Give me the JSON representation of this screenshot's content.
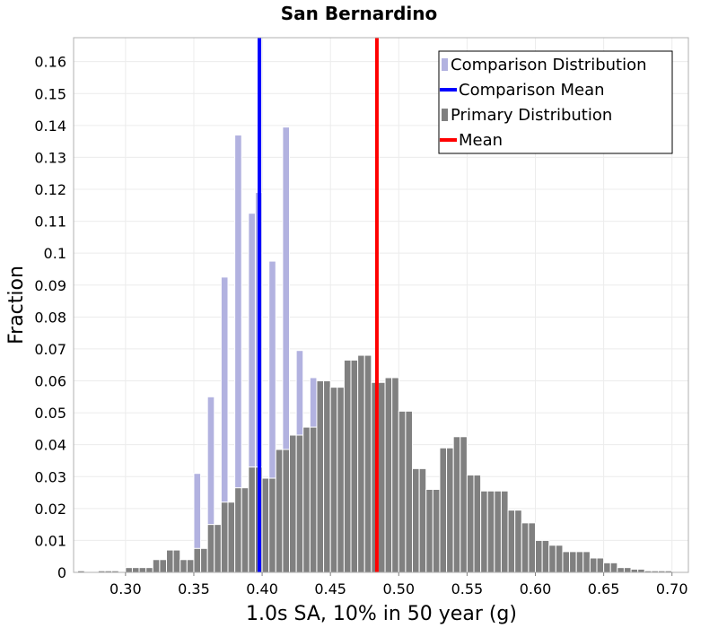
{
  "chart_data": {
    "type": "bar",
    "title": "San Bernardino",
    "xlabel": "1.0s SA, 10% in 50 year (g)",
    "ylabel": "Fraction",
    "xlim": [
      0.262,
      0.712
    ],
    "ylim": [
      0,
      0.1675
    ],
    "x_ticks": [
      "0.30",
      "0.35",
      "0.40",
      "0.45",
      "0.50",
      "0.55",
      "0.60",
      "0.65",
      "0.70"
    ],
    "y_ticks": [
      "0",
      "0.01",
      "0.02",
      "0.03",
      "0.04",
      "0.05",
      "0.06",
      "0.07",
      "0.08",
      "0.09",
      "0.1",
      "0.11",
      "0.12",
      "0.13",
      "0.14",
      "0.15",
      "0.16"
    ],
    "grid": true,
    "legend_position": "top-right",
    "bin_width": 0.005,
    "legend": [
      {
        "label": "Comparison Distribution",
        "kind": "box",
        "color": "#b2b2e0"
      },
      {
        "label": "Comparison Mean",
        "kind": "line",
        "color": "#0000ff"
      },
      {
        "label": "Primary Distribution",
        "kind": "box",
        "color": "#808080"
      },
      {
        "label": "Mean",
        "kind": "line",
        "color": "#ff0000"
      }
    ],
    "series": [
      {
        "name": "Comparison Distribution",
        "color": "#b2b2e0",
        "x": [
          0.35,
          0.355,
          0.36,
          0.365,
          0.37,
          0.375,
          0.38,
          0.385,
          0.39,
          0.395,
          0.4,
          0.405,
          0.41,
          0.415,
          0.42,
          0.425,
          0.43,
          0.435
        ],
        "values": [
          0.031,
          0.0,
          0.055,
          0.0,
          0.0925,
          0.0,
          0.137,
          0.0,
          0.1125,
          0.119,
          0.0,
          0.0975,
          0.0,
          0.1395,
          0.0,
          0.0695,
          0.0,
          0.061
        ]
      },
      {
        "name": "Primary Distribution",
        "color": "#808080",
        "x": [
          0.265,
          0.27,
          0.275,
          0.28,
          0.285,
          0.29,
          0.295,
          0.3,
          0.305,
          0.31,
          0.315,
          0.32,
          0.325,
          0.33,
          0.335,
          0.34,
          0.345,
          0.35,
          0.355,
          0.36,
          0.365,
          0.37,
          0.375,
          0.38,
          0.385,
          0.39,
          0.395,
          0.4,
          0.405,
          0.41,
          0.415,
          0.42,
          0.425,
          0.43,
          0.435,
          0.44,
          0.445,
          0.45,
          0.455,
          0.46,
          0.465,
          0.47,
          0.475,
          0.48,
          0.485,
          0.49,
          0.495,
          0.5,
          0.505,
          0.51,
          0.515,
          0.52,
          0.525,
          0.53,
          0.535,
          0.54,
          0.545,
          0.55,
          0.555,
          0.56,
          0.565,
          0.57,
          0.575,
          0.58,
          0.585,
          0.59,
          0.595,
          0.6,
          0.605,
          0.61,
          0.615,
          0.62,
          0.625,
          0.63,
          0.635,
          0.64,
          0.645,
          0.65,
          0.655,
          0.66,
          0.665,
          0.67,
          0.675,
          0.68,
          0.685,
          0.69,
          0.695,
          0.7,
          0.705
        ],
        "values": [
          0.0005,
          0.0,
          0.0,
          0.0005,
          0.0005,
          0.0005,
          0.0,
          0.0015,
          0.0015,
          0.0015,
          0.0015,
          0.004,
          0.004,
          0.007,
          0.007,
          0.004,
          0.004,
          0.0075,
          0.0075,
          0.015,
          0.015,
          0.022,
          0.022,
          0.0265,
          0.0265,
          0.033,
          0.033,
          0.0295,
          0.0295,
          0.0385,
          0.0385,
          0.043,
          0.043,
          0.0455,
          0.0455,
          0.06,
          0.06,
          0.058,
          0.058,
          0.0665,
          0.0665,
          0.068,
          0.068,
          0.0595,
          0.0595,
          0.061,
          0.061,
          0.0505,
          0.0505,
          0.0325,
          0.0325,
          0.026,
          0.026,
          0.039,
          0.039,
          0.0425,
          0.0425,
          0.0305,
          0.0305,
          0.0255,
          0.0255,
          0.0255,
          0.0255,
          0.0195,
          0.0195,
          0.0155,
          0.0155,
          0.01,
          0.01,
          0.0085,
          0.0085,
          0.0065,
          0.0065,
          0.0065,
          0.0065,
          0.0045,
          0.0045,
          0.003,
          0.003,
          0.0015,
          0.0015,
          0.001,
          0.001,
          0.0005,
          0.0005,
          0.0005,
          0.0005,
          0.0,
          0.0
        ]
      }
    ],
    "mean_lines": [
      {
        "name": "Comparison Mean",
        "x": 0.398,
        "color": "#0000ff"
      },
      {
        "name": "Mean",
        "x": 0.484,
        "color": "#ff0000"
      }
    ]
  }
}
